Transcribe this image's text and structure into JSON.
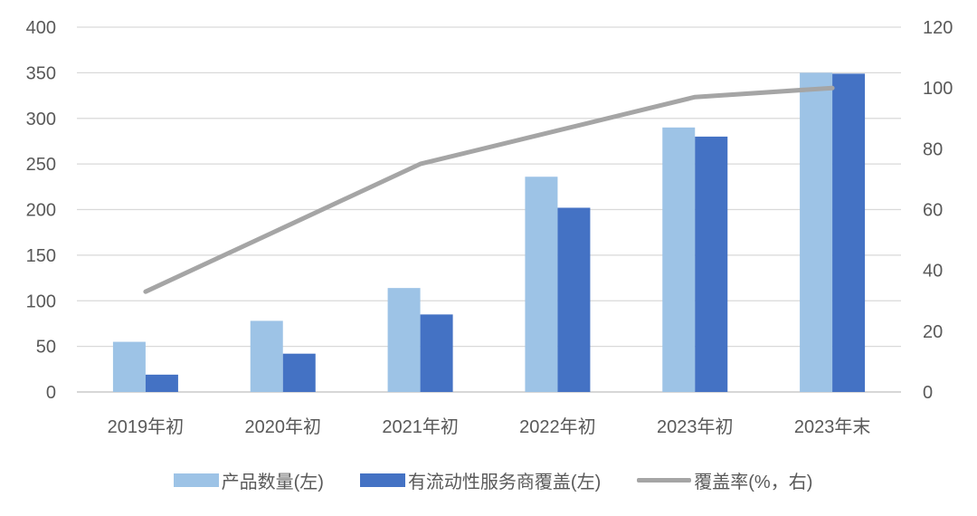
{
  "chart_data": {
    "type": "bar",
    "categories": [
      "2019年初",
      "2020年初",
      "2021年初",
      "2022年初",
      "2023年初",
      "2023年末"
    ],
    "series": [
      {
        "name": "产品数量(左)",
        "type": "bar",
        "axis": "left",
        "color": "#9DC3E6",
        "values": [
          55,
          78,
          114,
          236,
          290,
          350
        ]
      },
      {
        "name": "有流动性服务商覆盖(左)",
        "type": "bar",
        "axis": "left",
        "color": "#4472C4",
        "values": [
          19,
          42,
          85,
          202,
          280,
          349
        ]
      },
      {
        "name": "覆盖率(%，右)",
        "type": "line",
        "axis": "right",
        "color": "#A5A5A5",
        "values": [
          33,
          54,
          75,
          86,
          97,
          100
        ]
      }
    ],
    "y_left": {
      "ylim": [
        0,
        400
      ],
      "ticks": [
        "0",
        "50",
        "100",
        "150",
        "200",
        "250",
        "300",
        "350",
        "400"
      ]
    },
    "y_right": {
      "ylim": [
        0,
        120
      ],
      "ticks": [
        "0",
        "20",
        "40",
        "60",
        "80",
        "100",
        "120"
      ]
    },
    "grid": true,
    "legend": "bottom"
  }
}
